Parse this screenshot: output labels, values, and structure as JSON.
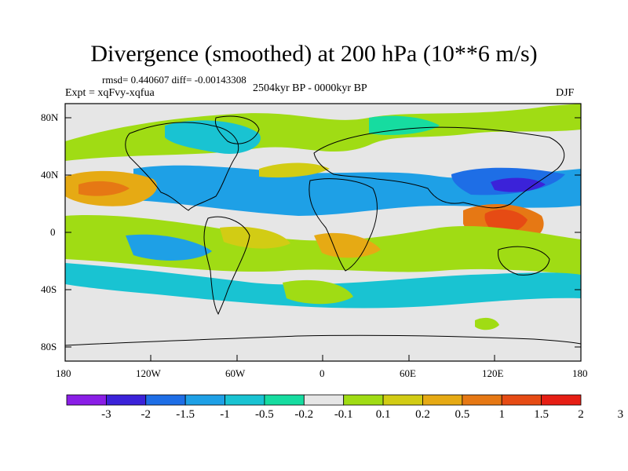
{
  "title": "Divergence (smoothed) at 200 hPa (10**6 m/s)",
  "stats_line": "rmsd= 0.440607 diff= -0.00143308",
  "experiment": "Expt = xqFvy-xqfua",
  "period": "2504kyr BP - 0000kyr BP",
  "season": "DJF",
  "y_ticks": [
    "80N",
    "40N",
    "0",
    "40S",
    "80S"
  ],
  "x_ticks": [
    "180",
    "120W",
    "60W",
    "0",
    "60E",
    "120E",
    "180"
  ],
  "colorbar": {
    "labels": [
      "-3",
      "-2",
      "-1.5",
      "-1",
      "-0.5",
      "-0.2",
      "-0.1",
      "0.1",
      "0.2",
      "0.5",
      "1",
      "1.5",
      "2",
      "3"
    ],
    "colors": [
      "#8a1ee6",
      "#3b22d9",
      "#1e6ee6",
      "#1ea0e6",
      "#19c3d2",
      "#16dca0",
      "#e6e6e6",
      "#a0dc14",
      "#d2cc14",
      "#e6aa14",
      "#e67814",
      "#e64b14",
      "#e61e14"
    ]
  },
  "map_colors": {
    "land_outline": "#000000",
    "frame": "#000000",
    "neutral": "#e6e6e6"
  }
}
